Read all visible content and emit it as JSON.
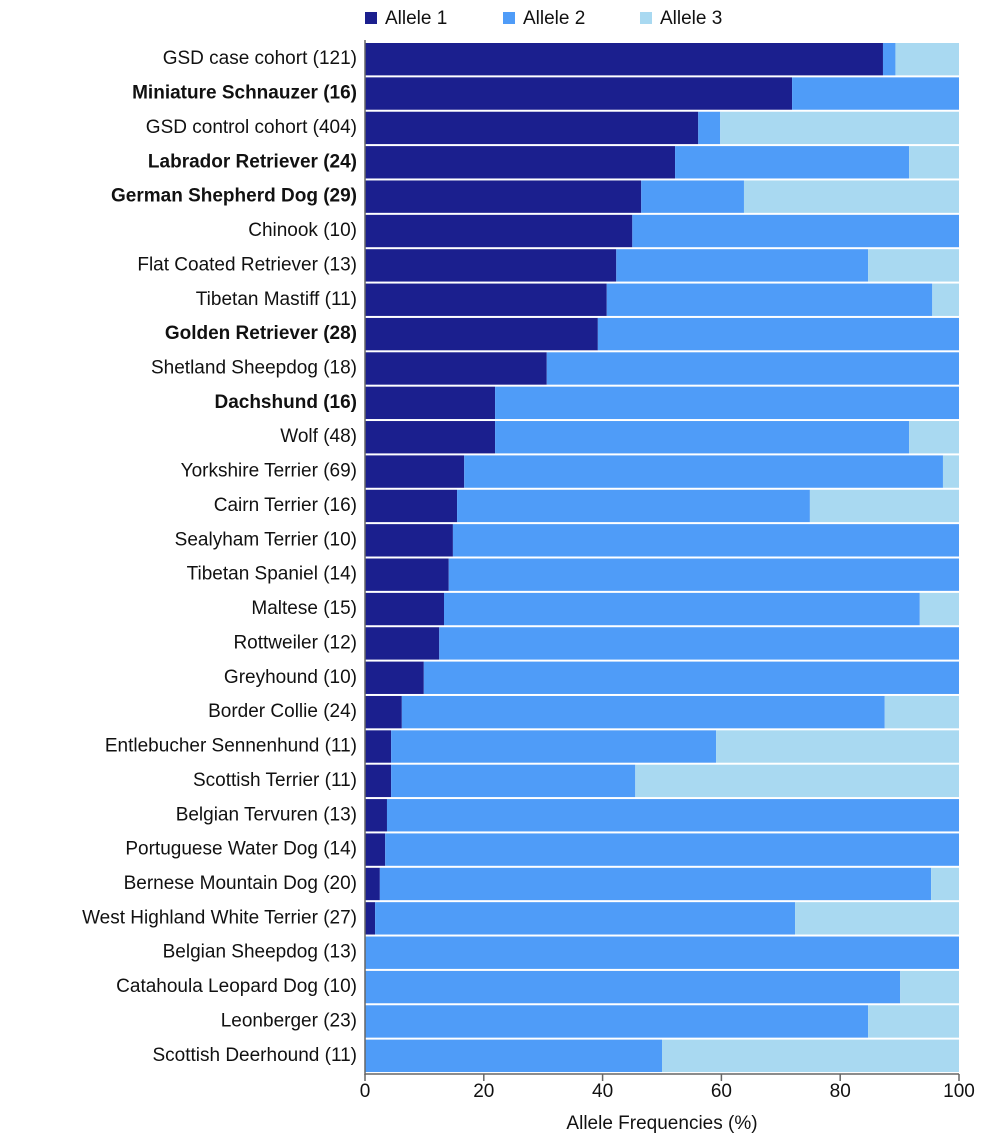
{
  "chart_data": {
    "type": "stacked_bar_horizontal",
    "categories": [
      "GSD case cohort (121)",
      "Miniature Schnauzer (16)",
      "GSD control cohort (404)",
      "Labrador Retriever (24)",
      "German Shepherd Dog (29)",
      "Chinook (10)",
      "Flat Coated Retriever (13)",
      "Tibetan Mastiff (11)",
      "Golden Retriever (28)",
      "Shetland Sheepdog (18)",
      "Dachshund (16)",
      "Wolf (48)",
      "Yorkshire Terrier (69)",
      "Cairn Terrier (16)",
      "Sealyham Terrier (10)",
      "Tibetan Spaniel (14)",
      "Maltese (15)",
      "Rottweiler (12)",
      "Greyhound (10)",
      "Border Collie (24)",
      "Entlebucher Sennenhund (11)",
      "Scottish Terrier (11)",
      "Belgian Tervuren (13)",
      "Portuguese Water Dog (14)",
      "Bernese Mountain Dog (20)",
      "West Highland White Terrier (27)",
      "Belgian Sheepdog (13)",
      "Catahoula Leopard Dog (10)",
      "Leonberger (23)",
      "Scottish Deerhound (11)"
    ],
    "bold_categories": [
      1,
      3,
      4,
      8,
      10
    ],
    "series": [
      {
        "name": "Allele 1",
        "color": "#1b1f8e",
        "values": [
          87.2,
          71.9,
          56.1,
          52.2,
          46.5,
          45.0,
          42.3,
          40.7,
          39.2,
          30.6,
          21.9,
          21.9,
          16.7,
          15.5,
          14.8,
          14.1,
          13.3,
          12.5,
          9.9,
          6.2,
          4.4,
          4.4,
          3.7,
          3.4,
          2.5,
          1.7,
          0,
          0,
          0,
          0
        ]
      },
      {
        "name": "Allele 2",
        "color": "#4f9cf8",
        "values": [
          2.1,
          28.1,
          3.7,
          39.4,
          17.3,
          55.0,
          42.4,
          54.8,
          60.8,
          69.4,
          78.1,
          69.7,
          80.6,
          59.4,
          85.2,
          85.9,
          80.1,
          87.5,
          90.1,
          81.3,
          54.7,
          41.1,
          96.3,
          96.6,
          92.8,
          70.7,
          100,
          90.1,
          84.7,
          50.0
        ]
      },
      {
        "name": "Allele 3",
        "color": "#a9d9f1",
        "values": [
          10.7,
          0,
          40.2,
          8.4,
          36.2,
          0,
          15.3,
          4.5,
          0,
          0,
          0,
          8.4,
          2.7,
          25.1,
          0,
          0,
          6.6,
          0,
          0,
          12.5,
          40.9,
          54.5,
          0,
          0,
          4.7,
          27.6,
          0,
          9.9,
          15.3,
          50.0
        ]
      }
    ],
    "x_label": "Allele Frequencies (%)",
    "xlim": [
      0,
      100
    ],
    "xticks": [
      0,
      20,
      40,
      60,
      80,
      100
    ],
    "legend": "top"
  }
}
